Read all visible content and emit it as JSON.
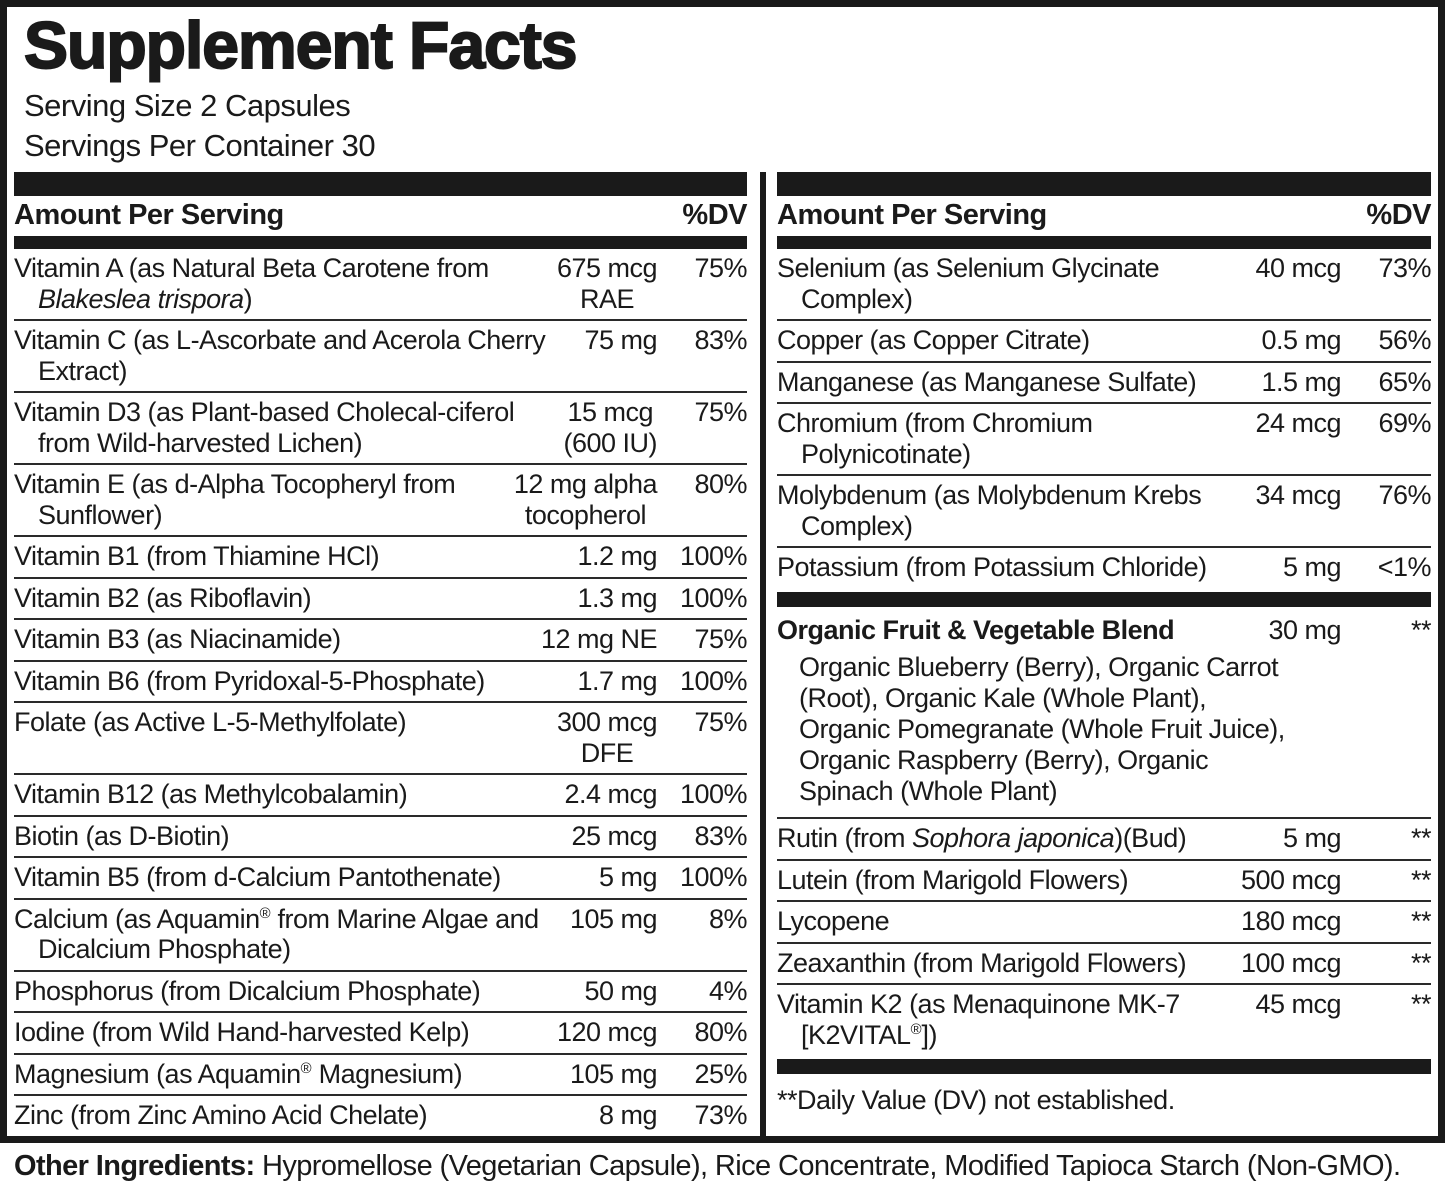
{
  "title": "Supplement Facts",
  "serving": {
    "size": "Serving Size 2 Capsules",
    "per_container": "Servings Per Container 30"
  },
  "table_header": {
    "amount": "Amount Per Serving",
    "dv": "%DV"
  },
  "colors": {
    "ink": "#1a1a1a",
    "background": "#ffffff"
  },
  "columns": {
    "left": {
      "rows": [
        {
          "type": "item",
          "name": [
            [
              "Vitamin A (as Natural Beta Carotene from "
            ],
            [
              "Blakeslea trispora",
              "i"
            ],
            [
              ")"
            ]
          ],
          "amount": "675 mcg\nRAE",
          "dv": "75%"
        },
        {
          "type": "item",
          "name": [
            [
              "Vitamin C (as L-Ascorbate and Acerola Cherry Extract)"
            ]
          ],
          "amount": "75 mg",
          "dv": "83%"
        },
        {
          "type": "item",
          "name": [
            [
              "Vitamin D3 (as Plant-based Cholecal-ciferol from Wild-harvested Lichen)"
            ]
          ],
          "amount": "15 mcg\n(600 IU)",
          "dv": "75%"
        },
        {
          "type": "item",
          "name": [
            [
              "Vitamin E (as d-Alpha Tocopheryl from Sunflower)"
            ]
          ],
          "amount": "12 mg alpha\ntocopherol",
          "dv": "80%"
        },
        {
          "type": "item",
          "name": [
            [
              "Vitamin B1 (from Thiamine HCl)"
            ]
          ],
          "amount": "1.2 mg",
          "dv": "100%"
        },
        {
          "type": "item",
          "name": [
            [
              "Vitamin B2 (as Riboflavin)"
            ]
          ],
          "amount": "1.3 mg",
          "dv": "100%"
        },
        {
          "type": "item",
          "name": [
            [
              "Vitamin B3 (as Niacinamide)"
            ]
          ],
          "amount": "12 mg NE",
          "dv": "75%"
        },
        {
          "type": "item",
          "name": [
            [
              "Vitamin B6 (from Pyridoxal-5-Phosphate)"
            ]
          ],
          "amount": "1.7 mg",
          "dv": "100%"
        },
        {
          "type": "item",
          "name": [
            [
              "Folate (as Active L-5-Methylfolate)"
            ]
          ],
          "amount": "300 mcg\nDFE",
          "dv": "75%"
        },
        {
          "type": "item",
          "name": [
            [
              "Vitamin B12 (as Methylcobalamin)"
            ]
          ],
          "amount": "2.4 mcg",
          "dv": "100%"
        },
        {
          "type": "item",
          "name": [
            [
              "Biotin (as D-Biotin)"
            ]
          ],
          "amount": "25 mcg",
          "dv": "83%"
        },
        {
          "type": "item",
          "name": [
            [
              "Vitamin B5 (from d-Calcium Pantothenate)"
            ]
          ],
          "amount": "5 mg",
          "dv": "100%"
        },
        {
          "type": "item",
          "name": [
            [
              "Calcium (as Aquamin"
            ],
            [
              "®",
              "sup"
            ],
            [
              " from Marine Algae and Dicalcium Phosphate)"
            ]
          ],
          "amount": "105 mg",
          "dv": "8%"
        },
        {
          "type": "item",
          "name": [
            [
              "Phosphorus (from Dicalcium Phosphate)"
            ]
          ],
          "amount": "50 mg",
          "dv": "4%"
        },
        {
          "type": "item",
          "name": [
            [
              "Iodine (from Wild Hand-harvested Kelp)"
            ]
          ],
          "amount": "120 mcg",
          "dv": "80%"
        },
        {
          "type": "item",
          "name": [
            [
              "Magnesium (as Aquamin"
            ],
            [
              "®",
              "sup"
            ],
            [
              " Magnesium)"
            ]
          ],
          "amount": "105 mg",
          "dv": "25%"
        },
        {
          "type": "item",
          "name": [
            [
              "Zinc (from Zinc Amino Acid Chelate)"
            ]
          ],
          "amount": "8 mg",
          "dv": "73%"
        }
      ]
    },
    "right": {
      "rows": [
        {
          "type": "item",
          "name": [
            [
              "Selenium (as Selenium Glycinate Complex)"
            ]
          ],
          "amount": "40 mcg",
          "dv": "73%"
        },
        {
          "type": "item",
          "name": [
            [
              "Copper (as Copper Citrate)"
            ]
          ],
          "amount": "0.5 mg",
          "dv": "56%"
        },
        {
          "type": "item",
          "name": [
            [
              "Manganese (as Manganese Sulfate)"
            ]
          ],
          "amount": "1.5 mg",
          "dv": "65%"
        },
        {
          "type": "item",
          "name": [
            [
              "Chromium (from Chromium Polynicotinate)"
            ]
          ],
          "amount": "24 mcg",
          "dv": "69%"
        },
        {
          "type": "item",
          "name": [
            [
              "Molybdenum (as Molybdenum Krebs Complex)"
            ]
          ],
          "amount": "34 mcg",
          "dv": "76%"
        },
        {
          "type": "item",
          "name": [
            [
              "Potassium (from Potassium Chloride)"
            ]
          ],
          "amount": "5 mg",
          "dv": "<1%"
        },
        {
          "type": "bar"
        },
        {
          "type": "item",
          "bold": true,
          "name": [
            [
              "Organic Fruit & Vegetable Blend"
            ]
          ],
          "amount": "30 mg",
          "dv": "**"
        },
        {
          "type": "desc",
          "text": "Organic Blueberry (Berry), Organic Carrot (Root), Organic Kale (Whole Plant), Organic Pomegranate (Whole Fruit Juice), Organic Raspberry (Berry), Organic Spinach (Whole Plant)"
        },
        {
          "type": "item",
          "name": [
            [
              "Rutin (from "
            ],
            [
              "Sophora japonica",
              "i"
            ],
            [
              ")(Bud)"
            ]
          ],
          "amount": "5 mg",
          "dv": "**"
        },
        {
          "type": "item",
          "name": [
            [
              "Lutein (from Marigold Flowers)"
            ]
          ],
          "amount": "500 mcg",
          "dv": "**"
        },
        {
          "type": "item",
          "name": [
            [
              "Lycopene"
            ]
          ],
          "amount": "180 mcg",
          "dv": "**"
        },
        {
          "type": "item",
          "name": [
            [
              "Zeaxanthin (from Marigold Flowers)"
            ]
          ],
          "amount": "100 mcg",
          "dv": "**"
        },
        {
          "type": "item",
          "name": [
            [
              "Vitamin K2 (as Menaquinone MK-7 [K2VITAL"
            ],
            [
              "®",
              "sup"
            ],
            [
              "])"
            ]
          ],
          "amount": "45 mcg",
          "dv": "**"
        },
        {
          "type": "bar"
        },
        {
          "type": "note",
          "text": "**Daily Value (DV) not established."
        }
      ]
    }
  },
  "other_ingredients": {
    "label": "Other Ingredients:",
    "text": " Hypromellose (Vegetarian Capsule), Rice Concentrate, Modified Tapioca Starch (Non-GMO)."
  }
}
